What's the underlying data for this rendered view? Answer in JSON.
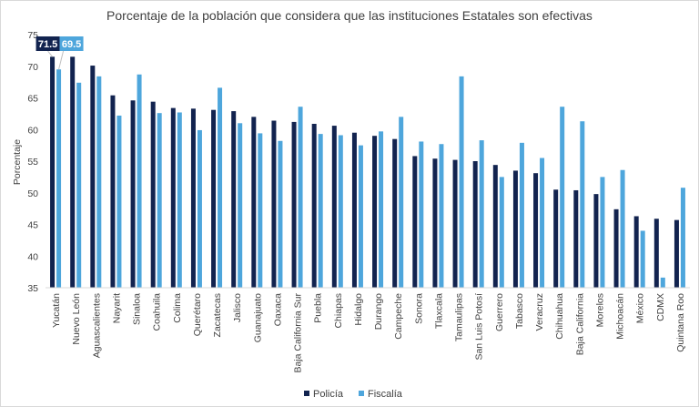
{
  "chart_data": {
    "type": "bar",
    "title": "Porcentaje de la población que considera que las instituciones Estatales son efectivas",
    "xlabel": "",
    "ylabel": "Porcentaje",
    "ylim": [
      35,
      75
    ],
    "yticks": [
      35,
      40,
      45,
      50,
      55,
      60,
      65,
      70,
      75
    ],
    "grid": false,
    "legend_position": "bottom",
    "categories": [
      "Yucatán",
      "Nuevo León",
      "Aguascalientes",
      "Nayarit",
      "Sinaloa",
      "Coahuila",
      "Colima",
      "Querétaro",
      "Zacatecas",
      "Jalisco",
      "Guanajuato",
      "Oaxaca",
      "Baja California Sur",
      "Puebla",
      "Chiapas",
      "Hidalgo",
      "Durango",
      "Campeche",
      "Sonora",
      "Tlaxcala",
      "Tamaulipas",
      "San Luis Potosí",
      "Guerrero",
      "Tabasco",
      "Veracruz",
      "Chihuahua",
      "Baja California",
      "Morelos",
      "Michoacán",
      "México",
      "CDMX",
      "Quintana Roo"
    ],
    "series": [
      {
        "name": "Policía",
        "color": "#12234f",
        "values": [
          71.5,
          71.5,
          70.1,
          65.4,
          64.6,
          64.4,
          63.4,
          63.3,
          63.1,
          62.9,
          62.0,
          61.4,
          61.2,
          60.9,
          60.6,
          59.5,
          59.0,
          58.5,
          55.8,
          55.4,
          55.2,
          55.0,
          54.4,
          53.5,
          53.1,
          50.5,
          50.4,
          49.8,
          47.4,
          46.3,
          45.9,
          45.7
        ]
      },
      {
        "name": "Fiscalía",
        "color": "#4ea6dc",
        "values": [
          69.5,
          67.4,
          68.4,
          62.2,
          68.7,
          62.6,
          62.7,
          59.9,
          66.6,
          61.0,
          59.4,
          58.2,
          63.6,
          59.3,
          59.1,
          57.5,
          59.7,
          62.0,
          58.1,
          57.7,
          68.4,
          58.3,
          52.5,
          57.9,
          55.5,
          63.6,
          61.3,
          52.5,
          53.6,
          44.0,
          36.6,
          50.8
        ]
      }
    ],
    "annotations": [
      {
        "category": "Yucatán",
        "series": "Policía",
        "text": "71.5",
        "color": "#12234f"
      },
      {
        "category": "Yucatán",
        "series": "Fiscalía",
        "text": "69.5",
        "color": "#4ea6dc"
      }
    ]
  }
}
